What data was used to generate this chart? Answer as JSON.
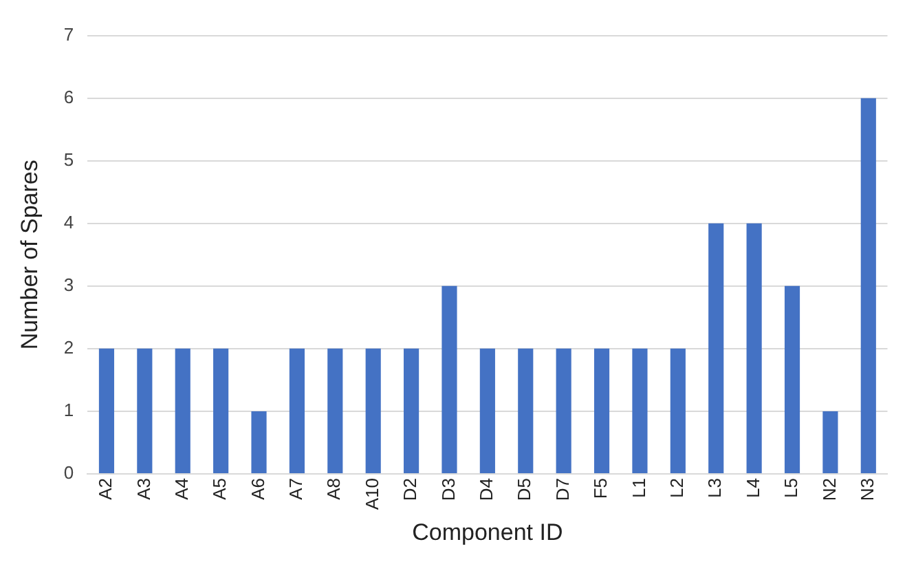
{
  "chart_data": {
    "type": "bar",
    "xlabel": "Component ID",
    "ylabel": "Number of Spares",
    "categories": [
      "A2",
      "A3",
      "A4",
      "A5",
      "A6",
      "A7",
      "A8",
      "A10",
      "D2",
      "D3",
      "D4",
      "D5",
      "D7",
      "F5",
      "L1",
      "L2",
      "L3",
      "L4",
      "L5",
      "N2",
      "N3"
    ],
    "values": [
      2,
      2,
      2,
      2,
      1,
      2,
      2,
      2,
      2,
      3,
      2,
      2,
      2,
      2,
      2,
      2,
      4,
      4,
      3,
      1,
      6
    ],
    "color": "#4472c4",
    "ylim": [
      0,
      7
    ],
    "yticks": [
      0,
      1,
      2,
      3,
      4,
      5,
      6,
      7
    ],
    "grid": "y"
  }
}
